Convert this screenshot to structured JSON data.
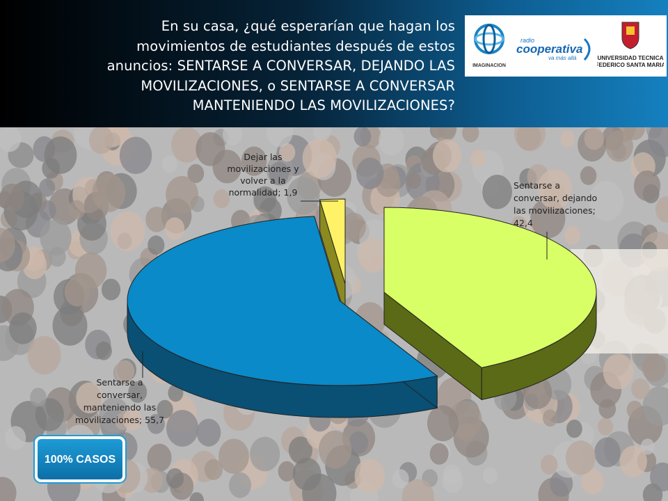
{
  "header": {
    "question": "En su casa, ¿qué esperarían que hagan los movimientos de estudiantes después de estos anuncios: SENTARSE A CONVERSAR, DEJANDO LAS MOVILIZACIONES, o SENTARSE A CONVERSAR MANTENIENDO LAS MOVILIZACIONES?",
    "question_lines": [
      "En su casa, ¿qué esperarían que hagan los",
      "movimientos de estudiantes después de estos",
      "anuncios: SENTARSE A CONVERSAR, DEJANDO LAS",
      "MOVILIZACIONES, o SENTARSE A CONVERSAR",
      "MANTENIENDO LAS MOVILIZACIONES?"
    ]
  },
  "logos": {
    "imaginacion": "IMAGINACION",
    "cooperativa_small": "radio",
    "cooperativa": "cooperativa",
    "cooperativa_tag": "va más allá",
    "utfsm_line1": "UNIVERSIDAD TECNICA",
    "utfsm_line2": "FEDERICO SANTA MARIA"
  },
  "badge": {
    "label": "100% CASOS"
  },
  "colors": {
    "mantener": "#0a8ac8",
    "dejando": "#d9ff66",
    "dejar": "#fff266"
  },
  "chart_data": {
    "type": "pie",
    "style": "3d-exploded",
    "slices": [
      {
        "label": "Sentarse a conversar, dejando las movilizaciones",
        "value": 42.4,
        "label_lines": [
          "Sentarse a",
          "conversar, dejando",
          "las movilizaciones;",
          "42,4"
        ]
      },
      {
        "label": "Sentarse a conversar, manteniendo las movilizaciones",
        "value": 55.7,
        "label_lines": [
          "Sentarse a",
          "conversar,",
          "manteniendo las",
          "movilizaciones; 55,7"
        ]
      },
      {
        "label": "Dejar las movilizaciones y volver a la normalidad",
        "value": 1.9,
        "label_lines": [
          "Dejar las",
          "movilizaciones y",
          "volver a la",
          "normalidad; 1,9"
        ]
      }
    ]
  }
}
